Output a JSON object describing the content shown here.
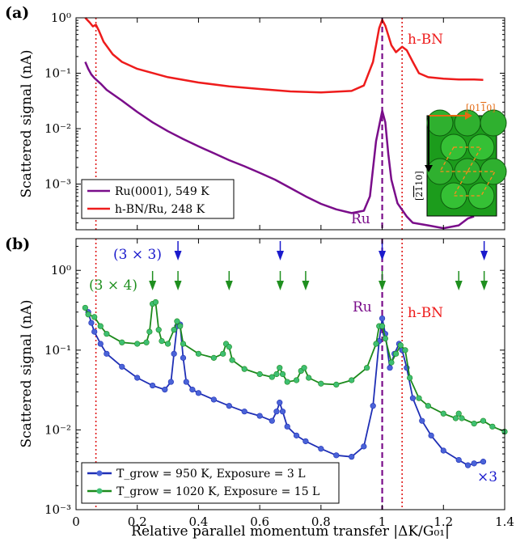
{
  "chart_data": [
    {
      "panel_label": "(a)",
      "type": "line",
      "xlim": [
        0,
        1.4
      ],
      "ylim": [
        0.00015,
        1
      ],
      "yscale": "log",
      "ylabel": "Scattered signal (nA)",
      "yticks": [
        {
          "v": 1,
          "l": "10⁰"
        },
        {
          "v": 0.1,
          "l": "10⁻¹"
        },
        {
          "v": 0.01,
          "l": "10⁻²"
        },
        {
          "v": 0.001,
          "l": "10⁻³"
        }
      ],
      "series": [
        {
          "name": "Ru(0001), 549 K",
          "color": "#7a0d8a",
          "points": [
            [
              0.03,
              0.16
            ],
            [
              0.04,
              0.12
            ],
            [
              0.05,
              0.095
            ],
            [
              0.06,
              0.082
            ],
            [
              0.08,
              0.065
            ],
            [
              0.1,
              0.05
            ],
            [
              0.15,
              0.032
            ],
            [
              0.2,
              0.02
            ],
            [
              0.25,
              0.013
            ],
            [
              0.3,
              0.009
            ],
            [
              0.35,
              0.0065
            ],
            [
              0.4,
              0.0048
            ],
            [
              0.45,
              0.0036
            ],
            [
              0.5,
              0.0027
            ],
            [
              0.55,
              0.0021
            ],
            [
              0.6,
              0.0016
            ],
            [
              0.65,
              0.0012
            ],
            [
              0.7,
              0.00085
            ],
            [
              0.75,
              0.0006
            ],
            [
              0.8,
              0.00044
            ],
            [
              0.85,
              0.00035
            ],
            [
              0.9,
              0.0003
            ],
            [
              0.94,
              0.00033
            ],
            [
              0.96,
              0.0006
            ],
            [
              0.98,
              0.006
            ],
            [
              1.0,
              0.021
            ],
            [
              1.01,
              0.013
            ],
            [
              1.02,
              0.0035
            ],
            [
              1.03,
              0.0012
            ],
            [
              1.05,
              0.00045
            ],
            [
              1.08,
              0.00026
            ],
            [
              1.1,
              0.0002
            ],
            [
              1.15,
              0.00018
            ],
            [
              1.2,
              0.00016
            ],
            [
              1.25,
              0.00018
            ],
            [
              1.28,
              0.00024
            ],
            [
              1.3,
              0.00026
            ]
          ]
        },
        {
          "name": "h-BN/Ru, 248 K",
          "color": "#ee1c1c",
          "points": [
            [
              0.03,
              1.0
            ],
            [
              0.045,
              0.82
            ],
            [
              0.055,
              0.7
            ],
            [
              0.065,
              0.75
            ],
            [
              0.075,
              0.58
            ],
            [
              0.09,
              0.37
            ],
            [
              0.12,
              0.22
            ],
            [
              0.15,
              0.16
            ],
            [
              0.2,
              0.12
            ],
            [
              0.3,
              0.085
            ],
            [
              0.4,
              0.068
            ],
            [
              0.5,
              0.058
            ],
            [
              0.6,
              0.052
            ],
            [
              0.7,
              0.047
            ],
            [
              0.8,
              0.045
            ],
            [
              0.9,
              0.048
            ],
            [
              0.94,
              0.06
            ],
            [
              0.97,
              0.16
            ],
            [
              0.99,
              0.65
            ],
            [
              1.0,
              0.92
            ],
            [
              1.01,
              0.72
            ],
            [
              1.03,
              0.32
            ],
            [
              1.045,
              0.24
            ],
            [
              1.065,
              0.3
            ],
            [
              1.08,
              0.26
            ],
            [
              1.1,
              0.16
            ],
            [
              1.12,
              0.1
            ],
            [
              1.15,
              0.085
            ],
            [
              1.2,
              0.08
            ],
            [
              1.25,
              0.077
            ],
            [
              1.3,
              0.077
            ],
            [
              1.33,
              0.076
            ]
          ]
        }
      ],
      "vlines": [
        {
          "x": 0.065,
          "color": "#e01b1b",
          "style": "dotted"
        },
        {
          "x": 1.0,
          "color": "#7a0d8a",
          "style": "dashed"
        },
        {
          "x": 1.065,
          "color": "#e01b1b",
          "style": "dotted"
        }
      ],
      "annotations": [
        {
          "text": "h-BN",
          "color": "#ee1c1c"
        },
        {
          "text": "Ru",
          "color": "#7a0d8a"
        }
      ],
      "inset": {
        "label_top": "[01̅1̅0]",
        "label_side": "[2̅1̅10]",
        "top_label": "[01",
        "top_bar": "1",
        "top_end": "0]",
        "side_a": "[2",
        "side_b": "1",
        "side_c": "1",
        "side_d": "0]"
      },
      "legend_position": "bottom-left"
    },
    {
      "panel_label": "(b)",
      "type": "line",
      "xlim": [
        0,
        1.4
      ],
      "ylim": [
        0.001,
        2.5
      ],
      "yscale": "log",
      "xlabel": "Relative parallel momentum transfer |ΔK/G₀₁|",
      "ylabel": "Scattered signal (nA)",
      "xticks": [
        0,
        0.2,
        0.4,
        0.6,
        0.8,
        1,
        1.2,
        1.4
      ],
      "xtick_labels": [
        "0",
        "0.2",
        "0.4",
        "0.6",
        "0.8",
        "1",
        "1.2",
        "1.4"
      ],
      "yticks": [
        {
          "v": 1,
          "l": "10⁰"
        },
        {
          "v": 0.1,
          "l": "10⁻¹"
        },
        {
          "v": 0.01,
          "l": "10⁻²"
        },
        {
          "v": 0.001,
          "l": "10⁻³"
        }
      ],
      "series": [
        {
          "name": "T_grow = 950 K, Exposure = 3 L",
          "color": "#1f2fb5",
          "marker_color": "#4a63d8",
          "points": [
            [
              0.04,
              0.3
            ],
            [
              0.05,
              0.22
            ],
            [
              0.06,
              0.17
            ],
            [
              0.08,
              0.12
            ],
            [
              0.1,
              0.09
            ],
            [
              0.15,
              0.062
            ],
            [
              0.2,
              0.045
            ],
            [
              0.25,
              0.036
            ],
            [
              0.29,
              0.032
            ],
            [
              0.31,
              0.04
            ],
            [
              0.32,
              0.09
            ],
            [
              0.33,
              0.2
            ],
            [
              0.34,
              0.21
            ],
            [
              0.35,
              0.08
            ],
            [
              0.36,
              0.04
            ],
            [
              0.38,
              0.032
            ],
            [
              0.4,
              0.029
            ],
            [
              0.45,
              0.024
            ],
            [
              0.5,
              0.02
            ],
            [
              0.55,
              0.017
            ],
            [
              0.6,
              0.015
            ],
            [
              0.64,
              0.013
            ],
            [
              0.655,
              0.017
            ],
            [
              0.665,
              0.022
            ],
            [
              0.675,
              0.017
            ],
            [
              0.69,
              0.011
            ],
            [
              0.72,
              0.0085
            ],
            [
              0.75,
              0.0072
            ],
            [
              0.8,
              0.0058
            ],
            [
              0.85,
              0.0048
            ],
            [
              0.9,
              0.0046
            ],
            [
              0.94,
              0.0062
            ],
            [
              0.97,
              0.02
            ],
            [
              0.99,
              0.13
            ],
            [
              1.0,
              0.25
            ],
            [
              1.01,
              0.16
            ],
            [
              1.025,
              0.06
            ],
            [
              1.04,
              0.09
            ],
            [
              1.055,
              0.12
            ],
            [
              1.065,
              0.1
            ],
            [
              1.08,
              0.06
            ],
            [
              1.1,
              0.025
            ],
            [
              1.13,
              0.013
            ],
            [
              1.16,
              0.0085
            ],
            [
              1.2,
              0.0055
            ],
            [
              1.25,
              0.0042
            ],
            [
              1.28,
              0.0036
            ],
            [
              1.3,
              0.0038
            ],
            [
              1.33,
              0.004
            ]
          ]
        },
        {
          "name": "T_grow = 1020 K, Exposure = 15 L",
          "color": "#1c8a1c",
          "marker_color": "#3fbf72",
          "points": [
            [
              0.03,
              0.34
            ],
            [
              0.04,
              0.28
            ],
            [
              0.06,
              0.26
            ],
            [
              0.08,
              0.2
            ],
            [
              0.1,
              0.16
            ],
            [
              0.15,
              0.125
            ],
            [
              0.2,
              0.12
            ],
            [
              0.23,
              0.125
            ],
            [
              0.24,
              0.17
            ],
            [
              0.25,
              0.38
            ],
            [
              0.26,
              0.4
            ],
            [
              0.27,
              0.18
            ],
            [
              0.28,
              0.13
            ],
            [
              0.3,
              0.12
            ],
            [
              0.32,
              0.18
            ],
            [
              0.33,
              0.23
            ],
            [
              0.34,
              0.2
            ],
            [
              0.35,
              0.12
            ],
            [
              0.4,
              0.09
            ],
            [
              0.45,
              0.08
            ],
            [
              0.48,
              0.09
            ],
            [
              0.49,
              0.12
            ],
            [
              0.5,
              0.11
            ],
            [
              0.51,
              0.075
            ],
            [
              0.55,
              0.058
            ],
            [
              0.6,
              0.05
            ],
            [
              0.64,
              0.046
            ],
            [
              0.655,
              0.05
            ],
            [
              0.665,
              0.06
            ],
            [
              0.675,
              0.05
            ],
            [
              0.69,
              0.04
            ],
            [
              0.72,
              0.042
            ],
            [
              0.735,
              0.055
            ],
            [
              0.745,
              0.06
            ],
            [
              0.76,
              0.045
            ],
            [
              0.8,
              0.038
            ],
            [
              0.85,
              0.037
            ],
            [
              0.9,
              0.042
            ],
            [
              0.95,
              0.06
            ],
            [
              0.98,
              0.12
            ],
            [
              0.99,
              0.2
            ],
            [
              1.0,
              0.2
            ],
            [
              1.01,
              0.14
            ],
            [
              1.03,
              0.07
            ],
            [
              1.045,
              0.09
            ],
            [
              1.06,
              0.115
            ],
            [
              1.075,
              0.1
            ],
            [
              1.09,
              0.045
            ],
            [
              1.12,
              0.025
            ],
            [
              1.15,
              0.02
            ],
            [
              1.2,
              0.016
            ],
            [
              1.24,
              0.014
            ],
            [
              1.25,
              0.016
            ],
            [
              1.26,
              0.014
            ],
            [
              1.3,
              0.012
            ],
            [
              1.33,
              0.013
            ],
            [
              1.36,
              0.011
            ],
            [
              1.4,
              0.0095
            ]
          ]
        }
      ],
      "vlines": [
        {
          "x": 0.065,
          "color": "#e01b1b",
          "style": "dotted"
        },
        {
          "x": 1.0,
          "color": "#7a0d8a",
          "style": "dashed"
        },
        {
          "x": 1.065,
          "color": "#e01b1b",
          "style": "dotted"
        }
      ],
      "arrows": [
        {
          "group": "3x3",
          "color": "#1a1acc",
          "x": [
            0.333,
            0.667,
            1.0,
            1.333
          ]
        },
        {
          "group": "3x4",
          "color": "#1f8f1f",
          "x": [
            0.25,
            0.333,
            0.5,
            0.667,
            0.75,
            1.0,
            1.25,
            1.333
          ]
        }
      ],
      "annotations": [
        {
          "text": "(3 × 3)",
          "color": "#1a1acc"
        },
        {
          "text": "(3 × 4)",
          "color": "#1f8f1f"
        },
        {
          "text": "Ru",
          "color": "#7a0d8a"
        },
        {
          "text": "h-BN",
          "color": "#ee1c1c"
        },
        {
          "text": "×3",
          "color": "#1a1acc"
        }
      ],
      "legend_position": "bottom-left"
    }
  ]
}
